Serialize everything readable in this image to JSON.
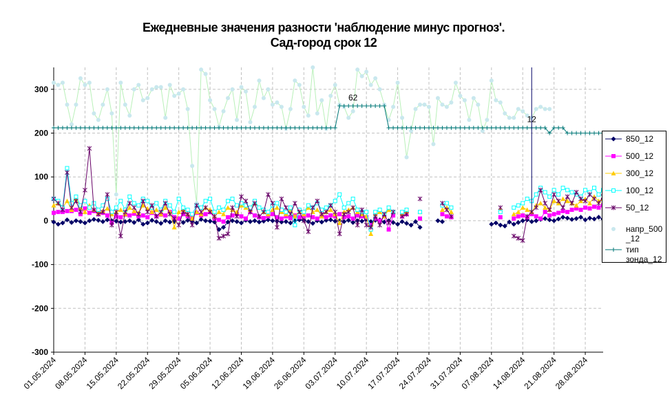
{
  "title_line1": "Ежедневные значения разности 'наблюдение минус прогноз'.",
  "title_line2": "Сад-город       срок 12",
  "colors": {
    "850_12": "#000066",
    "500_12": "#ff00ff",
    "300_12": "#ffcc00",
    "100_12": "#00ffff",
    "50_12": "#660066",
    "napr": "#c9e8ee",
    "napr_line": "#b8f0b8",
    "tip": "#007777",
    "grid": "#c0c0c0"
  },
  "chart_data": {
    "type": "line",
    "ylim": [
      -300,
      350
    ],
    "yticks": [
      "300",
      "200",
      "100",
      "0",
      "-100",
      "-200",
      "-300"
    ],
    "ytick_values": [
      300,
      200,
      100,
      0,
      -100,
      -200,
      -300
    ],
    "x_start": "01.05.2024",
    "x_end": "01.09.2024",
    "xticks": [
      "01.05.2024",
      "08.05.2024",
      "15.05.2024",
      "22.05.2024",
      "29.05.2024",
      "05.06.2024",
      "12.06.2024",
      "19.06.2024",
      "26.06.2024",
      "03.07.2024",
      "10.07.2024",
      "17.07.2024",
      "24.07.2024",
      "31.07.2024",
      "07.08.2024",
      "14.08.2024",
      "21.08.2024",
      "28.08.2024"
    ],
    "annotations": [
      {
        "text": "62",
        "x": "07.07.2024",
        "y": 275
      },
      {
        "text": "12",
        "x": "16.08.2024",
        "y": 225
      }
    ],
    "legend": [
      "850_12",
      "500_12",
      "300_12",
      "100_12",
      "50_12",
      "напр_500\n_12",
      "тип\nзонда_12"
    ],
    "series": [
      {
        "name": "850_12",
        "key": "850_12",
        "values": [
          -3,
          -8,
          -5,
          2,
          -4,
          0,
          -2,
          -5,
          0,
          3,
          1,
          -2,
          2,
          0,
          -1,
          -3,
          -2,
          0,
          -4,
          2,
          -8,
          -5,
          1,
          -2,
          -6,
          0,
          -3,
          -2,
          5,
          -4,
          1,
          -2,
          -5,
          3,
          0,
          -1,
          -3,
          -20,
          -15,
          -3,
          0,
          -2,
          -5,
          1,
          -2,
          0,
          -3,
          -1,
          2,
          0,
          -1,
          -3,
          -2,
          -5,
          0,
          2,
          1,
          -2,
          -6,
          0,
          -3,
          1,
          2,
          -1,
          0,
          -2,
          1,
          -4,
          0,
          -1,
          3,
          -2,
          1,
          2,
          -3,
          0,
          -4,
          -8,
          -2,
          -6,
          -10,
          -2,
          -15,
          null,
          null,
          null,
          0,
          -2,
          null,
          null,
          null,
          null,
          null,
          null,
          null,
          null,
          null,
          null,
          -8,
          -5,
          -10,
          -12,
          -3,
          -8,
          -4,
          0,
          2,
          -2,
          0,
          3,
          5,
          2,
          0,
          4,
          8,
          6,
          3,
          5,
          8,
          2,
          6,
          4,
          8,
          3,
          0,
          -3,
          -6,
          null,
          null,
          -3,
          -8,
          null,
          null,
          null,
          null,
          null,
          null,
          null,
          null,
          null,
          null,
          null,
          null,
          null,
          null
        ]
      },
      {
        "name": "500_12",
        "key": "500_12",
        "values": [
          18,
          20,
          20,
          22,
          22,
          25,
          15,
          28,
          18,
          22,
          15,
          18,
          12,
          -5,
          10,
          8,
          14,
          12,
          16,
          10,
          12,
          8,
          18,
          10,
          14,
          12,
          20,
          8,
          5,
          15,
          10,
          8,
          18,
          12,
          15,
          20,
          5,
          2,
          -2,
          8,
          12,
          15,
          10,
          5,
          20,
          12,
          8,
          6,
          10,
          15,
          8,
          5,
          10,
          6,
          12,
          8,
          10,
          12,
          8,
          5,
          10,
          8,
          12,
          10,
          15,
          8,
          10,
          5,
          12,
          10,
          8,
          -10,
          5,
          0,
          10,
          -20,
          12,
          null,
          10,
          15,
          null,
          null,
          5,
          null,
          null,
          null,
          null,
          15,
          10,
          8,
          null,
          null,
          null,
          null,
          null,
          null,
          null,
          null,
          null,
          null,
          8,
          null,
          null,
          5,
          10,
          12,
          8,
          15,
          10,
          5,
          20,
          12,
          15,
          18,
          22,
          20,
          25,
          28,
          25,
          30,
          28,
          32,
          30,
          35,
          30,
          28,
          35,
          20,
          null,
          null,
          55,
          20,
          null,
          null,
          null,
          null,
          null,
          null,
          null,
          null,
          null,
          null,
          null,
          null,
          null,
          null
        ]
      },
      {
        "name": "300_12",
        "key": "300_12",
        "values": [
          35,
          40,
          30,
          45,
          25,
          50,
          30,
          20,
          35,
          25,
          18,
          22,
          28,
          15,
          20,
          25,
          15,
          30,
          22,
          18,
          35,
          28,
          20,
          25,
          15,
          30,
          20,
          -15,
          20,
          25,
          15,
          5,
          20,
          15,
          30,
          25,
          10,
          20,
          15,
          30,
          25,
          20,
          35,
          30,
          25,
          40,
          30,
          20,
          15,
          25,
          30,
          20,
          15,
          25,
          10,
          20,
          15,
          30,
          20,
          25,
          10,
          20,
          25,
          15,
          -5,
          20,
          25,
          30,
          20,
          15,
          10,
          -30,
          15,
          20,
          10,
          25,
          20,
          null,
          15,
          20,
          null,
          null,
          20,
          null,
          null,
          null,
          null,
          25,
          30,
          20,
          null,
          null,
          null,
          null,
          null,
          null,
          null,
          null,
          null,
          null,
          25,
          null,
          null,
          15,
          20,
          30,
          25,
          20,
          35,
          40,
          30,
          25,
          45,
          40,
          50,
          45,
          40,
          35,
          45,
          50,
          40,
          55,
          45,
          50,
          40,
          30,
          20,
          10,
          null,
          null,
          120,
          40,
          null,
          null,
          null,
          null,
          null,
          null,
          null,
          null,
          null,
          null,
          null,
          null,
          null,
          null
        ]
      },
      {
        "name": "100_12",
        "key": "100_12",
        "values": [
          50,
          45,
          30,
          120,
          40,
          55,
          35,
          45,
          30,
          40,
          25,
          35,
          50,
          20,
          30,
          45,
          25,
          55,
          40,
          35,
          50,
          45,
          30,
          40,
          25,
          45,
          35,
          20,
          50,
          30,
          25,
          15,
          35,
          30,
          45,
          50,
          20,
          30,
          25,
          45,
          50,
          35,
          40,
          35,
          30,
          45,
          30,
          25,
          20,
          35,
          40,
          25,
          20,
          30,
          -10,
          25,
          20,
          35,
          30,
          40,
          25,
          30,
          35,
          45,
          60,
          30,
          40,
          50,
          25,
          20,
          20,
          -20,
          20,
          25,
          15,
          30,
          20,
          null,
          20,
          25,
          null,
          null,
          20,
          null,
          null,
          null,
          null,
          35,
          40,
          30,
          null,
          null,
          null,
          null,
          null,
          null,
          null,
          null,
          null,
          null,
          20,
          null,
          null,
          30,
          35,
          40,
          50,
          45,
          60,
          75,
          65,
          55,
          70,
          60,
          75,
          70,
          65,
          60,
          55,
          70,
          65,
          75,
          60,
          70,
          75,
          80,
          60,
          20,
          null,
          null,
          110,
          20,
          null,
          null,
          null,
          null,
          null,
          null,
          null,
          null,
          null,
          null,
          null,
          null,
          null,
          null
        ]
      },
      {
        "name": "50_12",
        "key": "50_12",
        "values": [
          50,
          40,
          25,
          110,
          30,
          45,
          20,
          70,
          165,
          25,
          15,
          20,
          60,
          -10,
          20,
          -35,
          20,
          40,
          30,
          15,
          45,
          20,
          35,
          10,
          20,
          40,
          15,
          5,
          -10,
          20,
          15,
          -10,
          35,
          20,
          30,
          20,
          10,
          -40,
          -35,
          -30,
          30,
          10,
          55,
          45,
          20,
          40,
          10,
          20,
          60,
          40,
          -15,
          50,
          30,
          15,
          40,
          20,
          0,
          -25,
          30,
          45,
          15,
          20,
          35,
          20,
          -30,
          15,
          20,
          30,
          -10,
          25,
          -10,
          -15,
          10,
          -10,
          15,
          -5,
          20,
          null,
          10,
          15,
          null,
          null,
          50,
          null,
          null,
          null,
          null,
          40,
          25,
          10,
          null,
          null,
          null,
          null,
          null,
          null,
          null,
          null,
          null,
          null,
          30,
          null,
          null,
          -35,
          -40,
          -45,
          10,
          20,
          30,
          70,
          40,
          25,
          60,
          45,
          30,
          55,
          40,
          65,
          50,
          45,
          60,
          50,
          40,
          55,
          45,
          60,
          40,
          -15,
          null,
          null,
          90,
          0,
          null,
          null,
          null,
          null,
          null,
          null,
          null,
          null,
          null,
          null,
          null,
          null,
          null,
          null
        ]
      },
      {
        "name": "напр_500\n_12",
        "key": "napr",
        "values": [
          315,
          310,
          315,
          265,
          220,
          265,
          325,
          310,
          315,
          245,
          230,
          265,
          300,
          245,
          60,
          315,
          265,
          240,
          300,
          310,
          275,
          280,
          300,
          305,
          305,
          235,
          310,
          285,
          290,
          300,
          255,
          125,
          40,
          345,
          335,
          275,
          255,
          215,
          250,
          280,
          300,
          230,
          305,
          295,
          225,
          260,
          320,
          280,
          300,
          265,
          270,
          260,
          210,
          255,
          320,
          310,
          260,
          240,
          350,
          245,
          275,
          210,
          285,
          310,
          265,
          260,
          235,
          250,
          345,
          330,
          340,
          310,
          325,
          300,
          265,
          230,
          260,
          315,
          235,
          145,
          205,
          255,
          265,
          265,
          260,
          175,
          280,
          265,
          260,
          270,
          315,
          285,
          275,
          230,
          280,
          265,
          205,
          230,
          320,
          275,
          270,
          245,
          235,
          235,
          255,
          250,
          240,
          235,
          255,
          260,
          255,
          255,
          0,
          0
        ]
      },
      {
        "name": "тип\nзонда_12",
        "key": "tip",
        "values": [
          212,
          212,
          212,
          212,
          212,
          212,
          212,
          212,
          212,
          212,
          212,
          212,
          212,
          212,
          212,
          212,
          212,
          212,
          212,
          212,
          212,
          212,
          212,
          212,
          212,
          212,
          212,
          212,
          212,
          212,
          212,
          212,
          212,
          212,
          212,
          212,
          212,
          212,
          212,
          212,
          212,
          212,
          212,
          212,
          212,
          212,
          212,
          212,
          212,
          212,
          212,
          212,
          212,
          212,
          212,
          212,
          212,
          212,
          212,
          212,
          212,
          212,
          212,
          212,
          262,
          262,
          262,
          262,
          262,
          262,
          262,
          262,
          262,
          262,
          262,
          212,
          212,
          212,
          212,
          212,
          212,
          212,
          212,
          212,
          212,
          212,
          212,
          212,
          212,
          212,
          212,
          212,
          212,
          212,
          212,
          212,
          212,
          212,
          212,
          212,
          212,
          212,
          212,
          212,
          212,
          212,
          212,
          212,
          212,
          212,
          212,
          200,
          212,
          212,
          212,
          200,
          200,
          200,
          200,
          200,
          200,
          200,
          200,
          200,
          200,
          200,
          200
        ]
      }
    ]
  }
}
